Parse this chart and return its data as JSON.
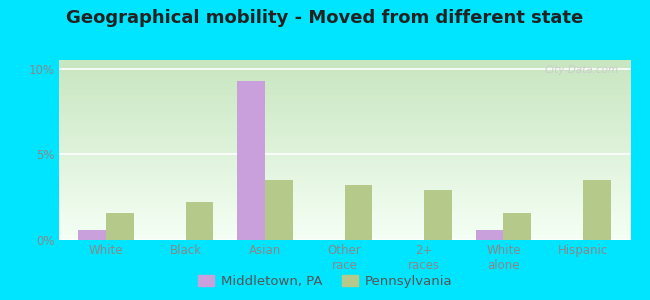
{
  "title": "Geographical mobility - Moved from different state",
  "categories": [
    "White",
    "Black",
    "Asian",
    "Other\nrace",
    "2+\nraces",
    "White\nalone",
    "Hispanic"
  ],
  "middletown_values": [
    0.6,
    0.0,
    9.3,
    0.0,
    0.0,
    0.6,
    0.0
  ],
  "pennsylvania_values": [
    1.6,
    2.2,
    3.5,
    3.2,
    2.9,
    1.6,
    3.5
  ],
  "middletown_color": "#c9a0dc",
  "pennsylvania_color": "#b5c98a",
  "bar_width": 0.35,
  "ylim": [
    0,
    10.5
  ],
  "ytick_vals": [
    0,
    5,
    10
  ],
  "ytick_labels": [
    "0%",
    "5%",
    "10%"
  ],
  "outer_background": "#00e5ff",
  "plot_bg_top": "#c8e6c0",
  "plot_bg_bottom": "#f5fff5",
  "legend_labels": [
    "Middletown, PA",
    "Pennsylvania"
  ],
  "watermark": "City-Data.com",
  "title_fontsize": 13,
  "tick_fontsize": 8.5,
  "legend_fontsize": 9.5
}
